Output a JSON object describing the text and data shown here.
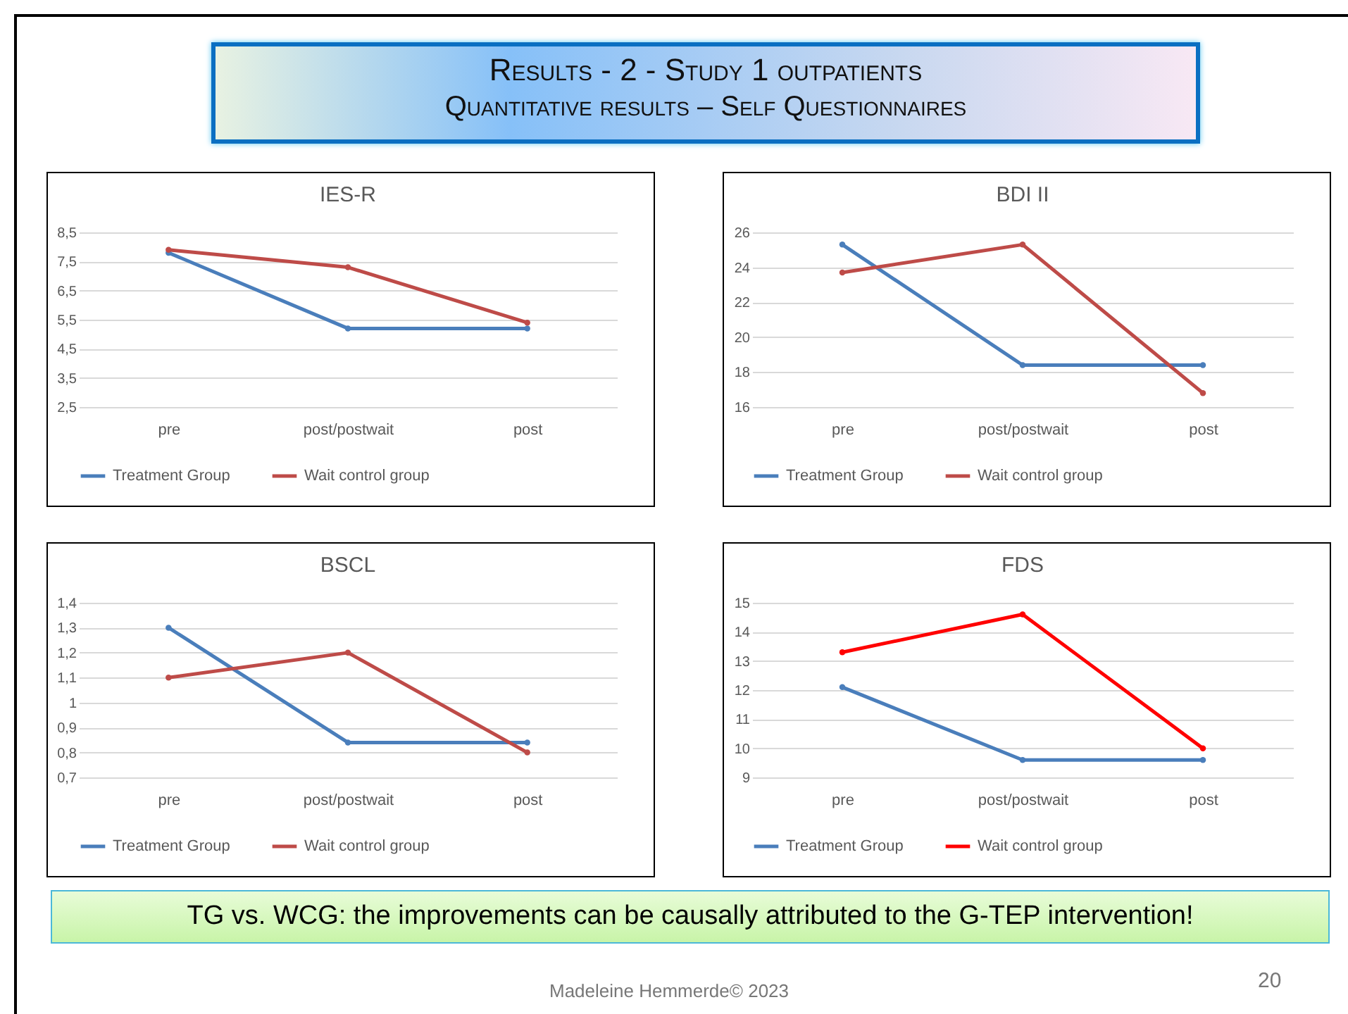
{
  "chart_data": [
    {
      "type": "other",
      "title": "Results  - 2 - Study 1 outpatients",
      "subtitle": "Quantitative results – Self Questionnaires"
    },
    {
      "type": "line",
      "title": "IES-R",
      "categories": [
        "pre",
        "post/postwait",
        "post"
      ],
      "series": [
        {
          "name": "Treatment Group",
          "color": "#4a7ebb",
          "values": [
            7.8,
            5.2,
            5.2
          ]
        },
        {
          "name": "Wait control group",
          "color": "#be4b48",
          "values": [
            7.9,
            7.3,
            5.4
          ]
        }
      ],
      "ylim": [
        2.5,
        8.5
      ],
      "yticks": [
        {
          "value": 2.5,
          "label": "2,5"
        },
        {
          "value": 3.5,
          "label": "3,5"
        },
        {
          "value": 4.5,
          "label": "4,5"
        },
        {
          "value": 5.5,
          "label": "5,5"
        },
        {
          "value": 6.5,
          "label": "6,5"
        },
        {
          "value": 7.5,
          "label": "7,5"
        },
        {
          "value": 8.5,
          "label": "8,5"
        }
      ],
      "grid": "y",
      "legend": "bottom",
      "marker": "circle"
    },
    {
      "type": "line",
      "title": "BDI II",
      "categories": [
        "pre",
        "post/postwait",
        "post"
      ],
      "series": [
        {
          "name": "Treatment Group",
          "color": "#4a7ebb",
          "values": [
            25.3,
            18.4,
            18.4
          ]
        },
        {
          "name": "Wait control group",
          "color": "#be4b48",
          "values": [
            23.7,
            25.3,
            16.8
          ]
        }
      ],
      "ylim": [
        16,
        26
      ],
      "yticks": [
        16,
        18,
        20,
        22,
        24,
        26
      ],
      "grid": "y",
      "legend": "bottom",
      "marker": "circle"
    },
    {
      "type": "line",
      "title": "BSCL",
      "categories": [
        "pre",
        "post/postwait",
        "post"
      ],
      "series": [
        {
          "name": "Treatment Group",
          "color": "#4a7ebb",
          "values": [
            1.3,
            0.84,
            0.84
          ]
        },
        {
          "name": "Wait control group",
          "color": "#be4b48",
          "values": [
            1.1,
            1.2,
            0.8
          ]
        }
      ],
      "ylim": [
        0.7,
        1.4
      ],
      "yticks": [
        {
          "value": 0.7,
          "label": "0,7"
        },
        {
          "value": 0.8,
          "label": "0,8"
        },
        {
          "value": 0.9,
          "label": "0,9"
        },
        1,
        {
          "value": 1.1,
          "label": "1,1"
        },
        {
          "value": 1.2,
          "label": "1,2"
        },
        {
          "value": 1.3,
          "label": "1,3"
        },
        {
          "value": 1.4,
          "label": "1,4"
        }
      ],
      "grid": "y",
      "legend": "bottom",
      "marker": "circle"
    },
    {
      "type": "line",
      "title": "FDS",
      "categories": [
        "pre",
        "post/postwait",
        "post"
      ],
      "series": [
        {
          "name": "Treatment Group",
          "color": "#4a7ebb",
          "values": [
            12.1,
            9.6,
            9.6
          ]
        },
        {
          "name": "Wait control group",
          "color": "#ff0000",
          "values": [
            13.3,
            14.6,
            10.0
          ]
        }
      ],
      "ylim": [
        9,
        15
      ],
      "yticks": [
        9,
        10,
        11,
        12,
        13,
        14,
        15
      ],
      "grid": "y",
      "legend": "bottom",
      "marker": "circle"
    },
    {
      "type": "other",
      "annotations": [
        "TG vs. WCG:  the improvements can be causally attributed to the G-TEP intervention!",
        "Madeleine Hemmerde© 2023",
        "20"
      ]
    }
  ]
}
